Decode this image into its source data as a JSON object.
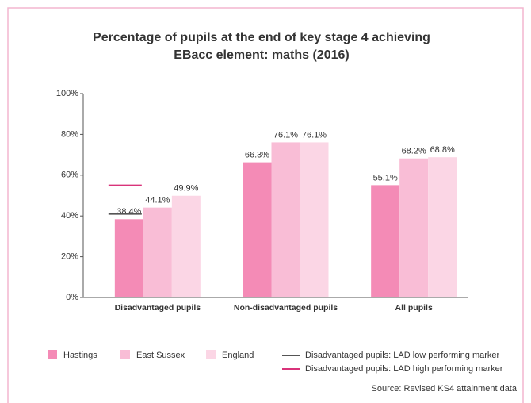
{
  "chart_data": {
    "type": "bar",
    "title": [
      "Percentage of pupils at the end of key stage 4 achieving",
      "EBacc element: maths (2016)"
    ],
    "categories": [
      "Disadvantaged pupils",
      "Non-disadvantaged pupils",
      "All pupils"
    ],
    "series": [
      {
        "name": "Hastings",
        "color": "#f48bb6",
        "values": [
          38.4,
          66.3,
          55.1
        ],
        "value_labels": [
          "38.4%",
          "66.3%",
          "55.1%"
        ]
      },
      {
        "name": "East Sussex",
        "color": "#f9bdd6",
        "values": [
          44.1,
          76.1,
          68.2
        ],
        "value_labels": [
          "44.1%",
          "76.1%",
          "68.2%"
        ]
      },
      {
        "name": "England",
        "color": "#fbd6e5",
        "values": [
          49.9,
          76.1,
          68.8
        ],
        "value_labels": [
          "49.9%",
          "76.1%",
          "68.8%"
        ]
      }
    ],
    "markers": [
      {
        "name": "Disadvantaged pupils: LAD low performing marker",
        "color": "#555555",
        "value": 41
      },
      {
        "name": "Disadvantaged pupils: LAD high performing marker",
        "color": "#d9337a",
        "value": 55
      }
    ],
    "ylim": [
      0,
      100
    ],
    "yticks": [
      {
        "value": 0,
        "label": "0%"
      },
      {
        "value": 20,
        "label": "20%"
      },
      {
        "value": 40,
        "label": "40%"
      },
      {
        "value": 60,
        "label": "60%"
      },
      {
        "value": 80,
        "label": "80%"
      },
      {
        "value": 100,
        "label": "100%"
      }
    ],
    "source": "Source: Revised KS4 attainment data"
  }
}
